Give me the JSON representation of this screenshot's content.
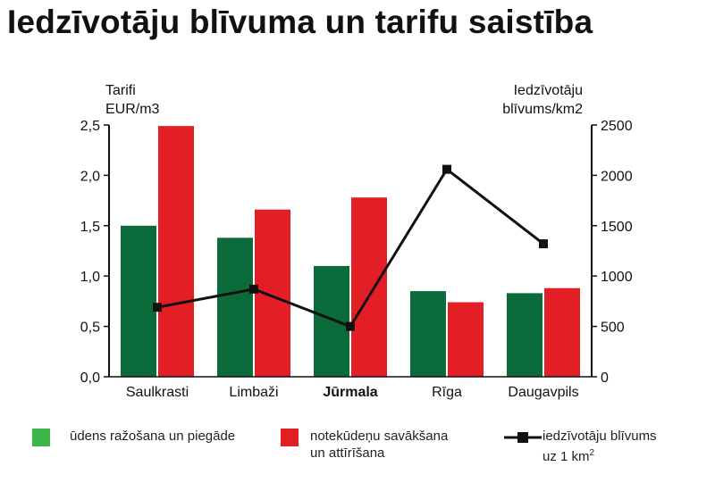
{
  "title": "Iedzīvotāju blīvuma un tarifu saistība",
  "colors": {
    "green": "#0b6b3a",
    "red": "#e31e24",
    "line": "#111111",
    "legend_green": "#3bb54a"
  },
  "legend": {
    "water": "ūdens ražošana un piegāde",
    "sewage_line1": "notekūdeņu savākšana",
    "sewage_line2": "un attīrīšana",
    "density_line1": "iedzīvotāju blīvums",
    "density_line2_prefix": "uz 1 km",
    "density_line2_sup": "2"
  },
  "chart_data": {
    "type": "bar",
    "categories": [
      "Saulkrasti",
      "Limbaži",
      "Jūrmala",
      "Rīga",
      "Daugavpils"
    ],
    "highlighted_category": "Jūrmala",
    "left_axis_label": [
      "Tarifi",
      "EUR/m3"
    ],
    "right_axis_label": [
      "Iedzīvotāju",
      "blīvums/km2"
    ],
    "left_ylim": [
      0,
      2.5
    ],
    "left_ticks": [
      "0,0",
      "0,5",
      "1,0",
      "1,5",
      "2,0",
      "2,5"
    ],
    "right_ylim": [
      0,
      2500
    ],
    "right_ticks": [
      "0",
      "500",
      "1000",
      "1500",
      "2000",
      "2500"
    ],
    "grid": false,
    "series": [
      {
        "name": "ūdens ražošana un piegāde",
        "kind": "bar",
        "axis": "left",
        "values": [
          1.5,
          1.38,
          1.1,
          0.85,
          0.83
        ]
      },
      {
        "name": "notekūdeņu savākšana un attīrīšana",
        "kind": "bar",
        "axis": "left",
        "values": [
          2.49,
          1.66,
          1.78,
          0.74,
          0.88
        ]
      },
      {
        "name": "iedzīvotāju blīvums uz 1 km2",
        "kind": "line",
        "axis": "right",
        "values": [
          690,
          870,
          500,
          2060,
          1320
        ]
      }
    ]
  }
}
